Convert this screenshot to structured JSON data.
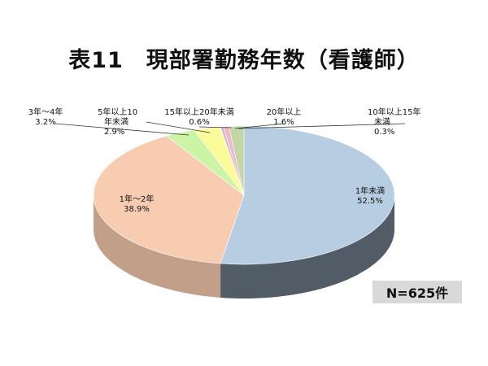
{
  "chart_data": {
    "type": "pie",
    "title": "表11　現部署勤務年数（看護師）",
    "note": "N=625件",
    "slices": [
      {
        "label": "1年未満",
        "value": 52.5,
        "color": "#b7cde2"
      },
      {
        "label": "1年～2年",
        "value": 38.9,
        "color": "#f8ccb0"
      },
      {
        "label": "3年～4年",
        "value": 3.2,
        "color": "#cbf5a5"
      },
      {
        "label": "5年以上10年未満",
        "value": 2.9,
        "color": "#fbfb9b"
      },
      {
        "label": "10年以上15年未満",
        "value": 0.3,
        "color": "#c8b5dd"
      },
      {
        "label": "15年以上20年未満",
        "value": 0.6,
        "color": "#f2b7c6"
      },
      {
        "label": "20年以上",
        "value": 1.6,
        "color": "#c3d6a6"
      }
    ],
    "label_lines": [
      {
        "text": [
          "1年未満",
          "52.5%"
        ]
      },
      {
        "text": [
          "1年～2年",
          "38.9%"
        ]
      },
      {
        "text": [
          "3年～4年",
          "3.2%"
        ]
      },
      {
        "text": [
          "5年以上10",
          "年未満",
          "2.9%"
        ]
      },
      {
        "text": [
          "10年以上15年",
          "未満",
          "0.3%"
        ]
      },
      {
        "text": [
          "15年以上20年未満",
          "0.6%"
        ]
      },
      {
        "text": [
          "20年以上",
          "1.6%"
        ]
      }
    ]
  }
}
